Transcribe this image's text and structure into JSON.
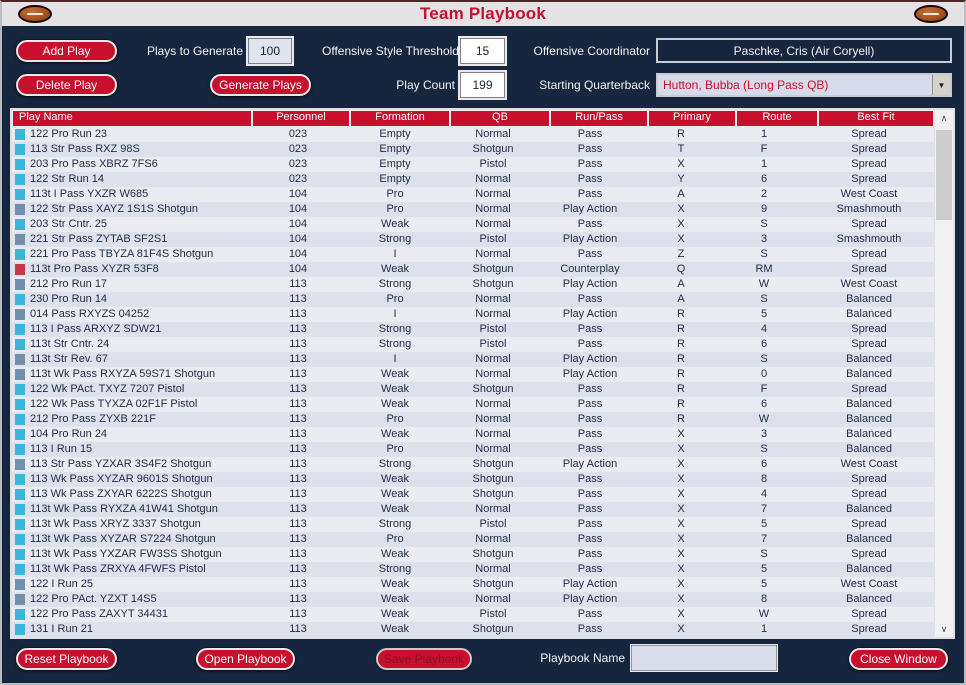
{
  "window": {
    "title": "Team Playbook"
  },
  "icons": {
    "football_left": "football-icon",
    "football_right": "football-icon",
    "scroll_up": "∧",
    "scroll_down": "∨",
    "dropdown_arrow": "▼"
  },
  "controls": {
    "add_play": "Add Play",
    "delete_play": "Delete Play",
    "generate_plays": "Generate Plays",
    "plays_to_generate_label": "Plays to Generate",
    "plays_to_generate_value": "100",
    "offensive_style_threshold_label": "Offensive Style Threshold",
    "offensive_style_threshold_value": "15",
    "play_count_label": "Play Count",
    "play_count_value": "199",
    "offensive_coordinator_label": "Offensive Coordinator",
    "offensive_coordinator_value": "Paschke, Cris (Air Coryell)",
    "starting_quarterback_label": "Starting Quarterback",
    "starting_quarterback_value": "Hutton, Bubba (Long Pass QB)"
  },
  "table": {
    "columns": [
      "Play Name",
      "Personnel",
      "Formation",
      "QB",
      "Run/Pass",
      "Primary",
      "Route",
      "Best Fit"
    ],
    "rows": [
      [
        "cyan",
        "122 Pro Run 23",
        "023",
        "Empty",
        "Normal",
        "Pass",
        "R",
        "1",
        "Spread"
      ],
      [
        "cyan",
        "113 Str Pass RXZ 98S",
        "023",
        "Empty",
        "Shotgun",
        "Pass",
        "T",
        "F",
        "Spread"
      ],
      [
        "cyan",
        "203 Pro Pass XBRZ 7FS6",
        "023",
        "Empty",
        "Pistol",
        "Pass",
        "X",
        "1",
        "Spread"
      ],
      [
        "cyan",
        "122 Str Run 14",
        "023",
        "Empty",
        "Normal",
        "Pass",
        "Y",
        "6",
        "Spread"
      ],
      [
        "cyan",
        "113t I Pass YXZR W685",
        "104",
        "Pro",
        "Normal",
        "Pass",
        "A",
        "2",
        "West Coast"
      ],
      [
        "steel",
        "122 Str Pass XAYZ 1S1S Shotgun",
        "104",
        "Pro",
        "Normal",
        "Play Action",
        "X",
        "9",
        "Smashmouth"
      ],
      [
        "cyan",
        "203 Str Cntr. 25",
        "104",
        "Weak",
        "Normal",
        "Pass",
        "X",
        "S",
        "Spread"
      ],
      [
        "steel",
        "221 Str Pass ZYTAB SF2S1",
        "104",
        "Strong",
        "Pistol",
        "Play Action",
        "X",
        "3",
        "Smashmouth"
      ],
      [
        "cyan",
        "221 Pro Pass TBYZA 81F4S Shotgun",
        "104",
        "I",
        "Normal",
        "Pass",
        "Z",
        "S",
        "Spread"
      ],
      [
        "red",
        "113t Pro Pass XYZR 53F8",
        "104",
        "Weak",
        "Shotgun",
        "Counterplay",
        "Q",
        "RM",
        "Spread"
      ],
      [
        "steel",
        "212 Pro Run 17",
        "113",
        "Strong",
        "Shotgun",
        "Play Action",
        "A",
        "W",
        "West Coast"
      ],
      [
        "cyan",
        "230 Pro Run 14",
        "113",
        "Pro",
        "Normal",
        "Pass",
        "A",
        "S",
        "Balanced"
      ],
      [
        "steel",
        "014 Pass RXYZS 04252",
        "113",
        "I",
        "Normal",
        "Play Action",
        "R",
        "5",
        "Balanced"
      ],
      [
        "cyan",
        "113 I Pass ARXYZ SDW21",
        "113",
        "Strong",
        "Pistol",
        "Pass",
        "R",
        "4",
        "Spread"
      ],
      [
        "cyan",
        "113t Str Cntr. 24",
        "113",
        "Strong",
        "Pistol",
        "Pass",
        "R",
        "6",
        "Spread"
      ],
      [
        "steel",
        "113t Str Rev. 67",
        "113",
        "I",
        "Normal",
        "Play Action",
        "R",
        "S",
        "Balanced"
      ],
      [
        "steel",
        "113t Wk Pass RXYZA 59S71 Shotgun",
        "113",
        "Weak",
        "Normal",
        "Play Action",
        "R",
        "0",
        "Balanced"
      ],
      [
        "cyan",
        "122 Wk PAct. TXYZ 7207 Pistol",
        "113",
        "Weak",
        "Shotgun",
        "Pass",
        "R",
        "F",
        "Spread"
      ],
      [
        "cyan",
        "122 Wk Pass TYXZA 02F1F Pistol",
        "113",
        "Weak",
        "Normal",
        "Pass",
        "R",
        "6",
        "Balanced"
      ],
      [
        "cyan",
        "212 Pro Pass ZYXB 221F",
        "113",
        "Pro",
        "Normal",
        "Pass",
        "R",
        "W",
        "Balanced"
      ],
      [
        "cyan",
        "104 Pro Run 24",
        "113",
        "Weak",
        "Normal",
        "Pass",
        "X",
        "3",
        "Balanced"
      ],
      [
        "cyan",
        "113 I Run 15",
        "113",
        "Pro",
        "Normal",
        "Pass",
        "X",
        "S",
        "Balanced"
      ],
      [
        "steel",
        "113 Str Pass YZXAR 3S4F2 Shotgun",
        "113",
        "Strong",
        "Shotgun",
        "Play Action",
        "X",
        "6",
        "West Coast"
      ],
      [
        "cyan",
        "113 Wk Pass XYZAR 9601S Shotgun",
        "113",
        "Weak",
        "Shotgun",
        "Pass",
        "X",
        "8",
        "Spread"
      ],
      [
        "cyan",
        "113 Wk Pass ZXYAR 6222S Shotgun",
        "113",
        "Weak",
        "Shotgun",
        "Pass",
        "X",
        "4",
        "Spread"
      ],
      [
        "cyan",
        "113t Wk Pass RYXZA 41W41 Shotgun",
        "113",
        "Weak",
        "Normal",
        "Pass",
        "X",
        "7",
        "Balanced"
      ],
      [
        "cyan",
        "113t Wk Pass XRYZ 3337 Shotgun",
        "113",
        "Strong",
        "Pistol",
        "Pass",
        "X",
        "5",
        "Spread"
      ],
      [
        "cyan",
        "113t Wk Pass XYZAR S7224 Shotgun",
        "113",
        "Pro",
        "Normal",
        "Pass",
        "X",
        "7",
        "Balanced"
      ],
      [
        "cyan",
        "113t Wk Pass YXZAR FW3SS Shotgun",
        "113",
        "Weak",
        "Shotgun",
        "Pass",
        "X",
        "S",
        "Spread"
      ],
      [
        "cyan",
        "113t Wk Pass ZRXYA 4FWFS Pistol",
        "113",
        "Strong",
        "Normal",
        "Pass",
        "X",
        "5",
        "Balanced"
      ],
      [
        "steel",
        "122 I Run 25",
        "113",
        "Weak",
        "Shotgun",
        "Play Action",
        "X",
        "5",
        "West Coast"
      ],
      [
        "steel",
        "122 Pro PAct. YZXT 14S5",
        "113",
        "Weak",
        "Normal",
        "Play Action",
        "X",
        "8",
        "Balanced"
      ],
      [
        "cyan",
        "122 Pro Pass ZAXYT 34431",
        "113",
        "Weak",
        "Pistol",
        "Pass",
        "X",
        "W",
        "Spread"
      ],
      [
        "cyan",
        "131 I Run 21",
        "113",
        "Weak",
        "Shotgun",
        "Pass",
        "X",
        "1",
        "Spread"
      ]
    ]
  },
  "footer": {
    "reset_label": "Reset Playbook",
    "open_label": "Open Playbook",
    "save_label": "Save Playbook",
    "playbook_name_label": "Playbook Name",
    "playbook_name_value": "",
    "close_label": "Close Window"
  },
  "colors": {
    "accent_red": "#c8102e",
    "body_navy": "#16263e",
    "titlebar_gray": "#e3e3e6",
    "row_light": "#ebecf2",
    "row_dark": "#dee1ec",
    "markers": {
      "cyan": "#3ab6da",
      "steel": "#7190ad",
      "red": "#c43b45"
    }
  }
}
